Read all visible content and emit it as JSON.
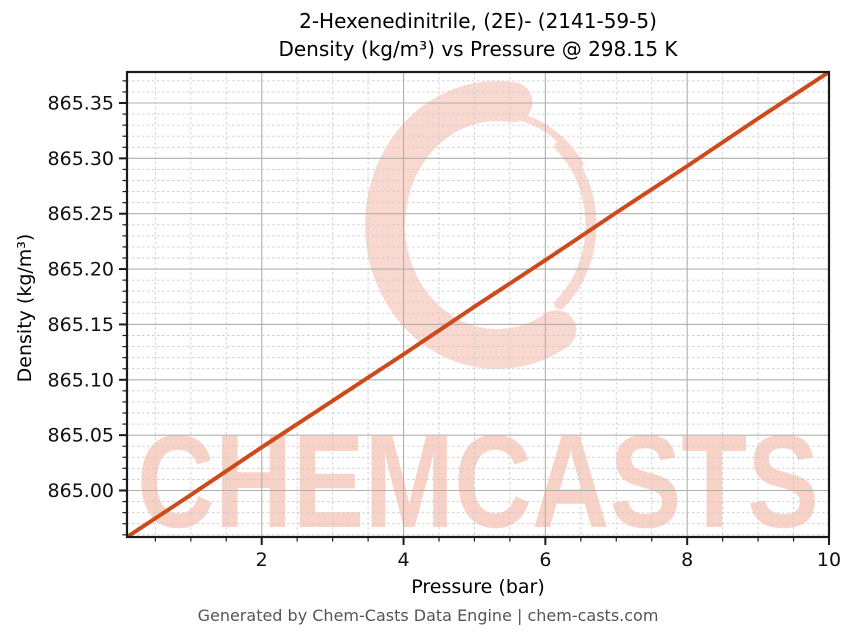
{
  "figure": {
    "title_line1": "2-Hexenedinitrile, (2E)- (2141-59-5)",
    "title_line2": "Density (kg/m³) vs Pressure @ 298.15 K",
    "footer": "Generated by Chem-Casts Data Engine | chem-casts.com"
  },
  "watermark": {
    "text": "CHEMCASTS",
    "ring_icon": "brush-circle-logo"
  },
  "colors": {
    "background": "#ffffff",
    "line": "#cc4a1b",
    "major_grid": "#b0b0b0",
    "minor_grid": "#cccccc",
    "spine": "#1a1a1a",
    "tick_label_text": "#111111",
    "footer_text": "#555555",
    "watermark_ring": "#f9d9cf",
    "watermark_text": "#f8d2c6"
  },
  "chart_data": {
    "type": "line",
    "title": "2-Hexenedinitrile, (2E)- (2141-59-5)\nDensity (kg/m³) vs Pressure @ 298.15 K",
    "xlabel": "Pressure (bar)",
    "ylabel": "Density (kg/m³)",
    "x": [
      0.1,
      1,
      2,
      3,
      4,
      5,
      6,
      7,
      8,
      9,
      10
    ],
    "y": [
      864.958,
      864.996,
      865.039,
      865.081,
      865.123,
      865.166,
      865.208,
      865.251,
      865.293,
      865.336,
      865.378
    ],
    "xlim": [
      0.1,
      10
    ],
    "ylim": [
      864.958,
      865.378
    ],
    "xticks": [
      2,
      4,
      6,
      8,
      10
    ],
    "xtick_labels": [
      "2",
      "4",
      "6",
      "8",
      "10"
    ],
    "yticks": [
      865.0,
      865.05,
      865.1,
      865.15,
      865.2,
      865.25,
      865.3,
      865.35
    ],
    "ytick_labels": [
      "865.00",
      "865.05",
      "865.10",
      "865.15",
      "865.20",
      "865.25",
      "865.30",
      "865.35"
    ],
    "x_minor_step": 0.5,
    "y_minor_step": 0.01,
    "grid": true,
    "legend": false
  }
}
